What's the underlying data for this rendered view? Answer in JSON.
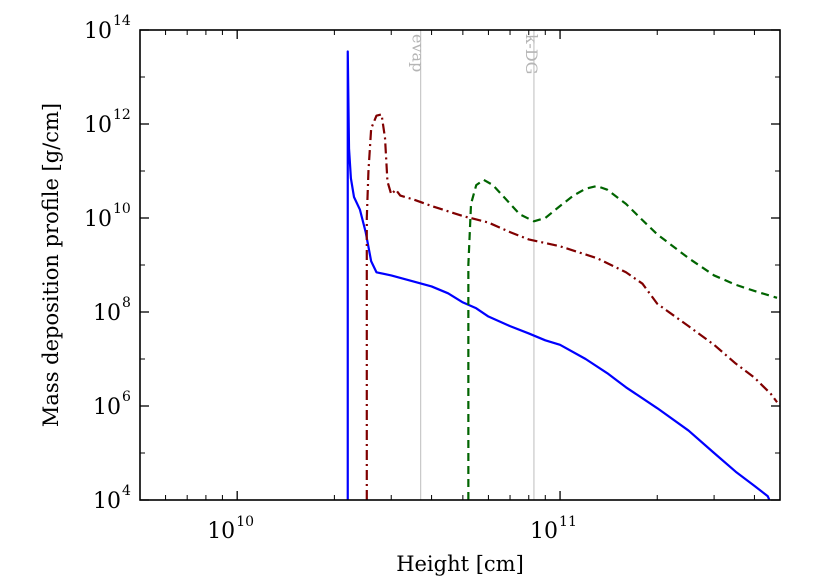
{
  "chart_data": {
    "type": "line",
    "title": "",
    "xlabel": "Height [cm]",
    "ylabel": "Mass deposition profile [g/cm]",
    "xscale": "log",
    "yscale": "log",
    "xlim": [
      5000000000.0,
      480000000000.0
    ],
    "ylim": [
      10000.0,
      100000000000000.0
    ],
    "grid": false,
    "legend": "none",
    "x_ticks": [
      {
        "base": "10",
        "exp": "10",
        "value": 10000000000.0
      },
      {
        "base": "10",
        "exp": "11",
        "value": 100000000000.0
      }
    ],
    "y_ticks": [
      {
        "base": "10",
        "exp": "4",
        "value": 10000.0
      },
      {
        "base": "10",
        "exp": "6",
        "value": 1000000.0
      },
      {
        "base": "10",
        "exp": "8",
        "value": 100000000.0
      },
      {
        "base": "10",
        "exp": "10",
        "value": 10000000000.0
      },
      {
        "base": "10",
        "exp": "12",
        "value": 1000000000000.0
      },
      {
        "base": "10",
        "exp": "14",
        "value": 100000000000000.0
      }
    ],
    "vertical_lines": [
      {
        "label": "evap",
        "x": 37000000000.0,
        "color": "#c8c8c8"
      },
      {
        "label": "k-DG",
        "x": 83000000000.0,
        "color": "#c8c8c8"
      }
    ],
    "series": [
      {
        "color": "#0000ff",
        "dash": "solid",
        "points": [
          [
            22000000000.0,
            10000.0
          ],
          [
            22000000000.0,
            35000000000000.0
          ],
          [
            22200000000.0,
            300000000000.0
          ],
          [
            22500000000.0,
            70000000000.0
          ],
          [
            23000000000.0,
            28000000000.0
          ],
          [
            24000000000.0,
            15000000000.0
          ],
          [
            25000000000.0,
            5000000000.0
          ],
          [
            26000000000.0,
            1200000000.0
          ],
          [
            27000000000.0,
            700000000.0
          ],
          [
            30000000000.0,
            600000000.0
          ],
          [
            35000000000.0,
            450000000.0
          ],
          [
            40000000000.0,
            350000000.0
          ],
          [
            45000000000.0,
            250000000.0
          ],
          [
            50000000000.0,
            160000000.0
          ],
          [
            55000000000.0,
            120000000.0
          ],
          [
            60000000000.0,
            80000000.0
          ],
          [
            70000000000.0,
            50000000.0
          ],
          [
            80000000000.0,
            35000000.0
          ],
          [
            90000000000.0,
            25000000.0
          ],
          [
            100000000000.0,
            20000000.0
          ],
          [
            120000000000.0,
            10000000.0
          ],
          [
            140000000000.0,
            5000000.0
          ],
          [
            160000000000.0,
            2500000.0
          ],
          [
            200000000000.0,
            900000.0
          ],
          [
            250000000000.0,
            300000.0
          ],
          [
            300000000000.0,
            100000.0
          ],
          [
            350000000000.0,
            40000.0
          ],
          [
            400000000000.0,
            20000.0
          ],
          [
            440000000000.0,
            12000.0
          ],
          [
            445000000000.0,
            10000.0
          ]
        ]
      },
      {
        "color": "#800000",
        "dash": "dash-dot",
        "points": [
          [
            25200000000.0,
            10000.0
          ],
          [
            25200000000.0,
            10000000000.0
          ],
          [
            25500000000.0,
            100000000000.0
          ],
          [
            26000000000.0,
            800000000000.0
          ],
          [
            27000000000.0,
            1500000000000.0
          ],
          [
            28000000000.0,
            1600000000000.0
          ],
          [
            28700000000.0,
            500000000000.0
          ],
          [
            29200000000.0,
            60000000000.0
          ],
          [
            30000000000.0,
            32000000000.0
          ],
          [
            31000000000.0,
            40000000000.0
          ],
          [
            32000000000.0,
            30000000000.0
          ],
          [
            35000000000.0,
            25000000000.0
          ],
          [
            40000000000.0,
            18000000000.0
          ],
          [
            50000000000.0,
            11000000000.0
          ],
          [
            60000000000.0,
            8000000000.0
          ],
          [
            70000000000.0,
            5000000000.0
          ],
          [
            80000000000.0,
            3500000000.0
          ],
          [
            100000000000.0,
            2500000000.0
          ],
          [
            130000000000.0,
            1400000000.0
          ],
          [
            160000000000.0,
            700000000.0
          ],
          [
            180000000000.0,
            400000000.0
          ],
          [
            200000000000.0,
            150000000.0
          ],
          [
            250000000000.0,
            50000000.0
          ],
          [
            300000000000.0,
            20000000.0
          ],
          [
            350000000000.0,
            8000000.0
          ],
          [
            400000000000.0,
            4000000.0
          ],
          [
            450000000000.0,
            1800000.0
          ],
          [
            470000000000.0,
            1200000.0
          ]
        ]
      },
      {
        "color": "#006400",
        "dash": "dashed",
        "points": [
          [
            52000000000.0,
            10000.0
          ],
          [
            52000000000.0,
            1000000000.0
          ],
          [
            53000000000.0,
            20000000000.0
          ],
          [
            55000000000.0,
            50000000000.0
          ],
          [
            58000000000.0,
            65000000000.0
          ],
          [
            62000000000.0,
            50000000000.0
          ],
          [
            68000000000.0,
            25000000000.0
          ],
          [
            75000000000.0,
            12000000000.0
          ],
          [
            83000000000.0,
            8500000000.0
          ],
          [
            90000000000.0,
            10000000000.0
          ],
          [
            100000000000.0,
            18000000000.0
          ],
          [
            110000000000.0,
            30000000000.0
          ],
          [
            120000000000.0,
            42000000000.0
          ],
          [
            130000000000.0,
            48000000000.0
          ],
          [
            140000000000.0,
            40000000000.0
          ],
          [
            160000000000.0,
            20000000000.0
          ],
          [
            180000000000.0,
            9000000000.0
          ],
          [
            200000000000.0,
            4500000000.0
          ],
          [
            250000000000.0,
            1400000000.0
          ],
          [
            300000000000.0,
            600000000.0
          ],
          [
            350000000000.0,
            380000000.0
          ],
          [
            400000000000.0,
            280000000.0
          ],
          [
            470000000000.0,
            200000000.0
          ]
        ]
      }
    ]
  }
}
